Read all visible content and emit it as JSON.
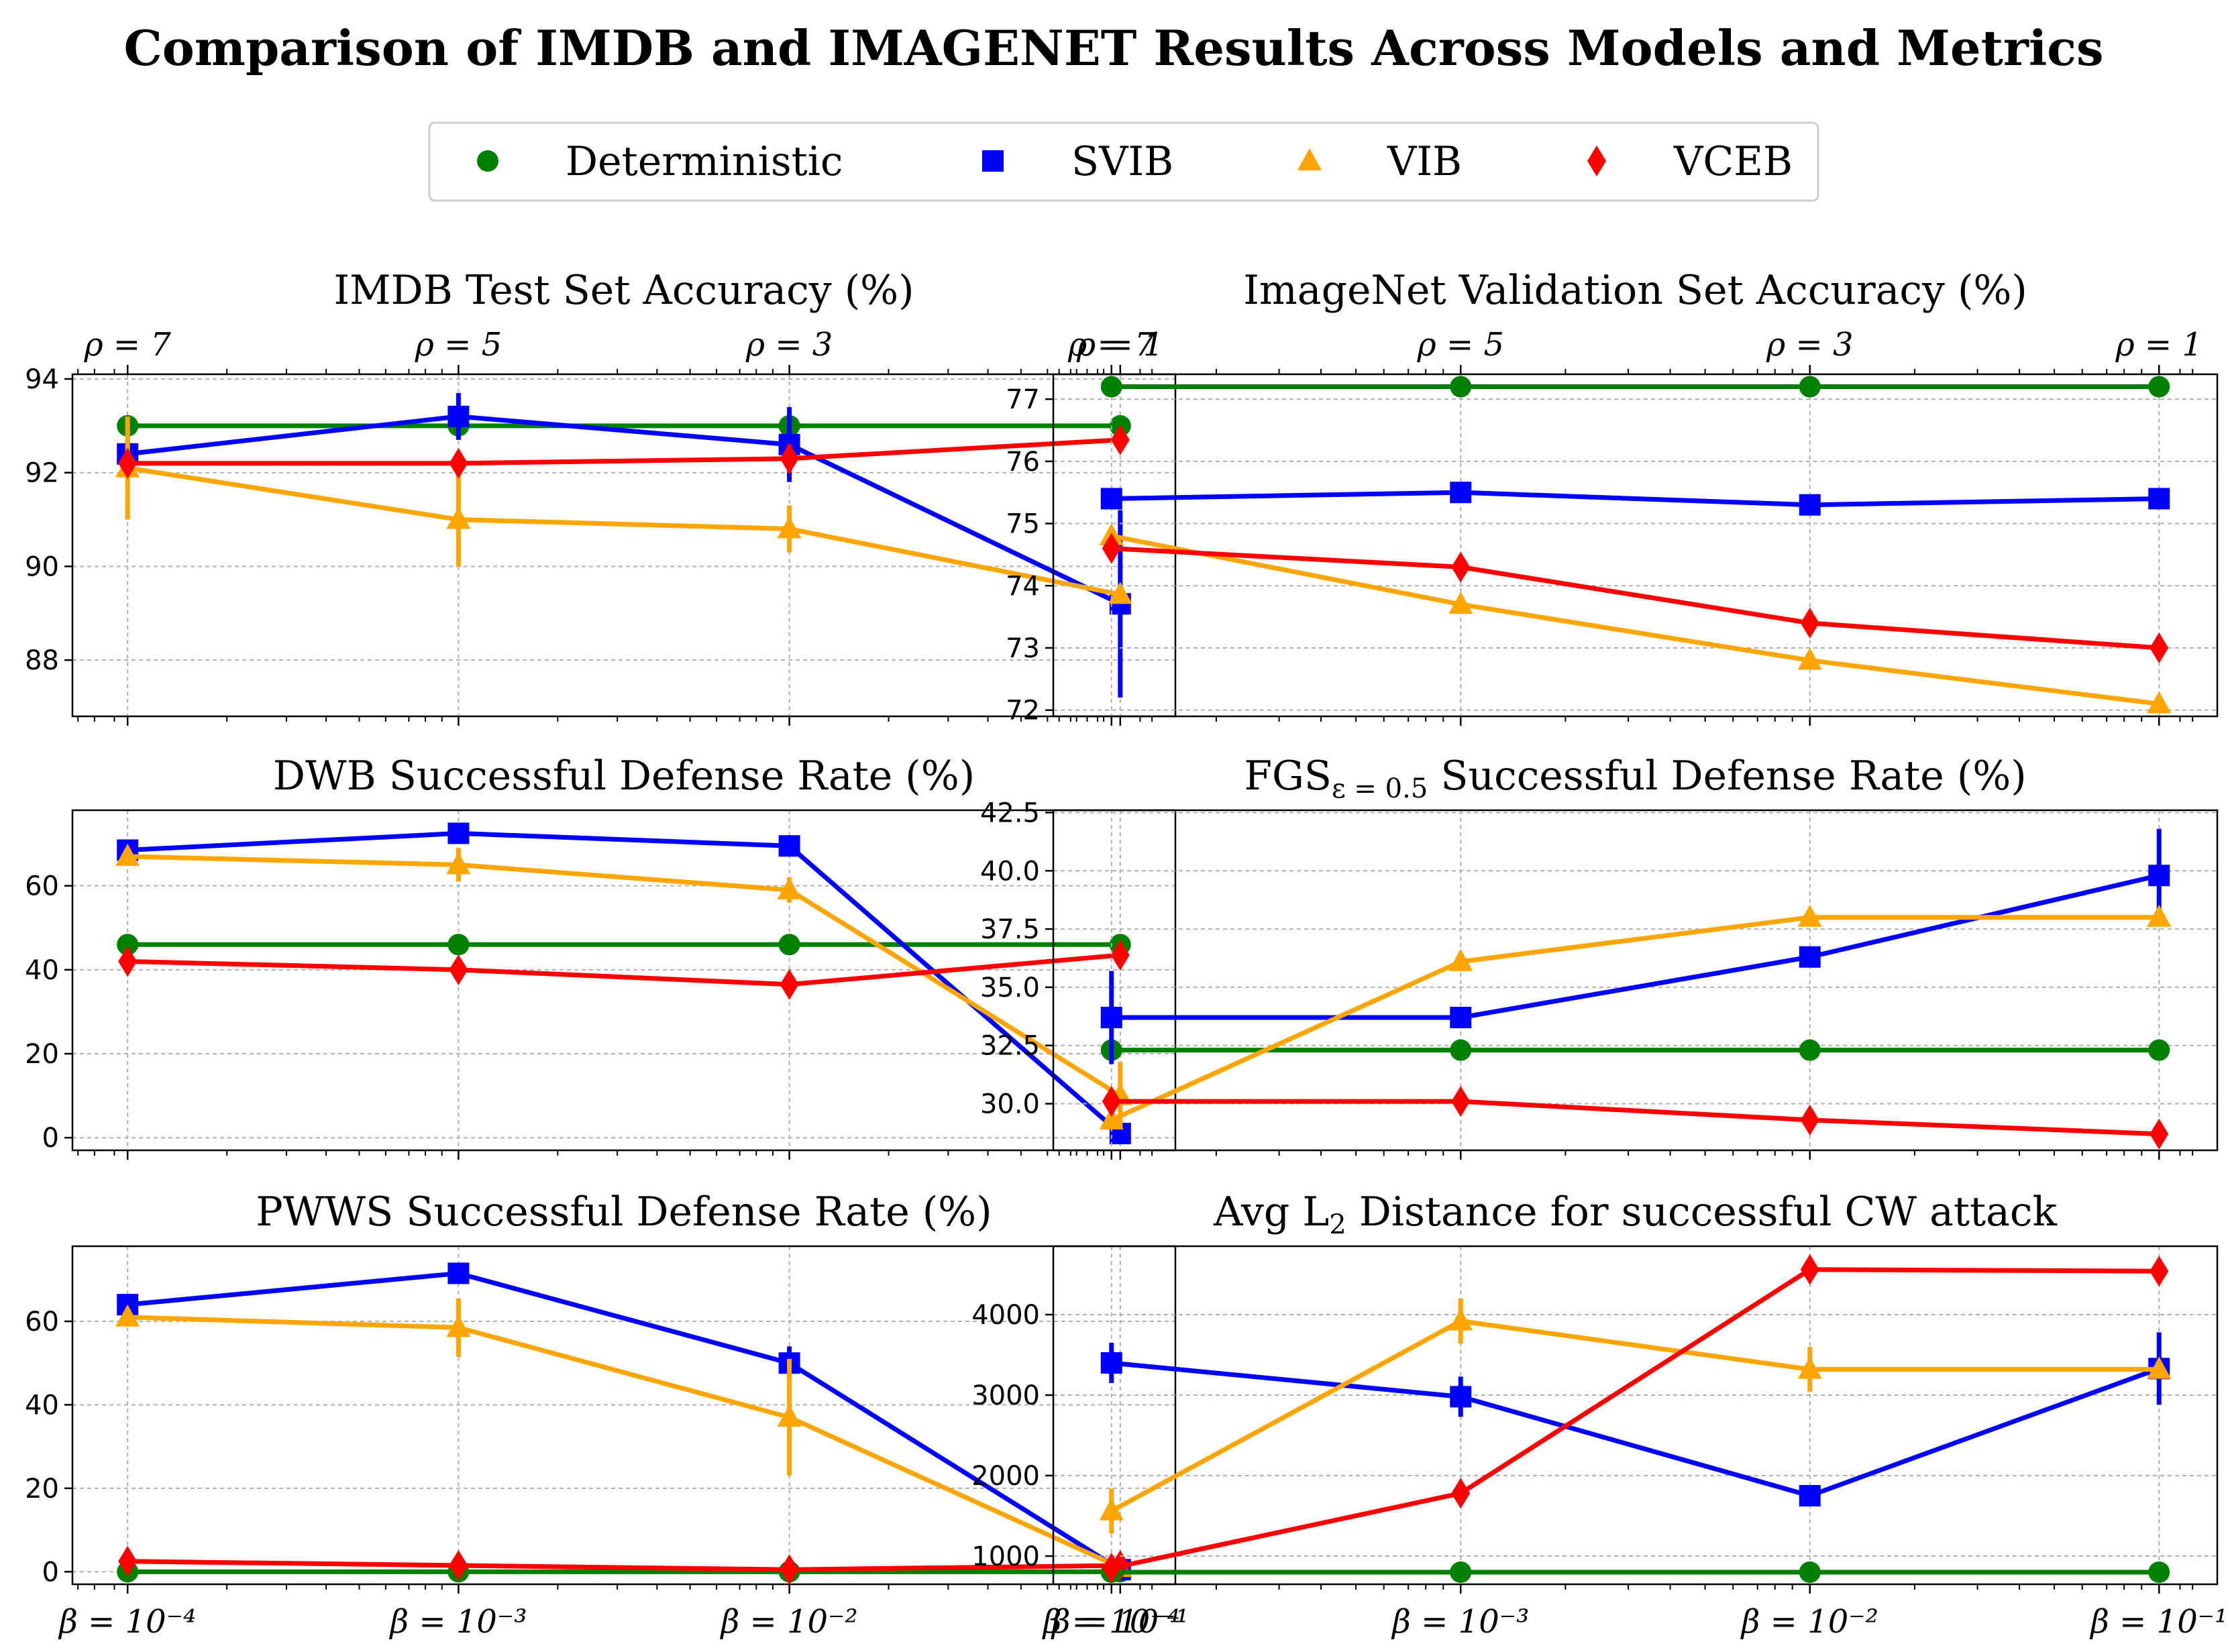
{
  "title": "Comparison of IMDB and IMAGENET Results Across Models and Metrics",
  "legend": [
    {
      "label": "Deterministic",
      "color": "#008000",
      "marker": "circle"
    },
    {
      "label": "SVIB",
      "color": "#0000ff",
      "marker": "square"
    },
    {
      "label": "VIB",
      "color": "#ffa500",
      "marker": "triangle"
    },
    {
      "label": "VCEB",
      "color": "#ff0000",
      "marker": "diamond"
    }
  ],
  "x_tick_labels": [
    "β = 10⁻⁴",
    "β = 10⁻³",
    "β = 10⁻²",
    "β = 10⁻¹"
  ],
  "top_tick_labels": [
    "ρ = 7",
    "ρ = 5",
    "ρ = 3",
    "ρ = 1"
  ],
  "chart_data": [
    {
      "type": "line",
      "title": "IMDB Test Set Accuracy (%)",
      "title_sub": "",
      "title_rest": "",
      "categories": [
        "β = 10⁻⁴",
        "β = 10⁻³",
        "β = 10⁻²",
        "β = 10⁻¹"
      ],
      "ylim": [
        86.8,
        94.1
      ],
      "yticks": [
        88,
        90,
        92,
        94
      ],
      "series": [
        {
          "name": "Deterministic",
          "values": [
            93.0,
            93.0,
            93.0,
            93.0
          ],
          "err": [
            0,
            0.3,
            0.2,
            0
          ]
        },
        {
          "name": "SVIB",
          "values": [
            92.4,
            93.2,
            92.6,
            89.2
          ],
          "err": [
            0.3,
            0.5,
            0.8,
            2.0
          ]
        },
        {
          "name": "VIB",
          "values": [
            92.1,
            91.0,
            90.8,
            89.4
          ],
          "err": [
            1.1,
            1.0,
            0.5,
            0.2
          ]
        },
        {
          "name": "VCEB",
          "values": [
            92.2,
            92.2,
            92.3,
            92.7
          ],
          "err": [
            0,
            0,
            0.3,
            0
          ]
        }
      ]
    },
    {
      "type": "line",
      "title": "ImageNet Validation Set Accuracy (%)",
      "title_sub": "",
      "title_rest": "",
      "categories": [
        "β = 10⁻⁴",
        "β = 10⁻³",
        "β = 10⁻²",
        "β = 10⁻¹"
      ],
      "ylim": [
        71.9,
        77.4
      ],
      "yticks": [
        72,
        73,
        74,
        75,
        76,
        77
      ],
      "series": [
        {
          "name": "Deterministic",
          "values": [
            77.2,
            77.2,
            77.2,
            77.2
          ],
          "err": [
            0,
            0,
            0,
            0
          ]
        },
        {
          "name": "SVIB",
          "values": [
            75.4,
            75.5,
            75.3,
            75.4
          ],
          "err": [
            0,
            0,
            0,
            0
          ]
        },
        {
          "name": "VIB",
          "values": [
            74.8,
            73.7,
            72.8,
            72.1
          ],
          "err": [
            0,
            0,
            0,
            0
          ]
        },
        {
          "name": "VCEB",
          "values": [
            74.6,
            74.3,
            73.4,
            73.0
          ],
          "err": [
            0,
            0,
            0,
            0
          ]
        }
      ]
    },
    {
      "type": "line",
      "title": "DWB Successful Defense Rate (%)",
      "title_sub": "",
      "title_rest": "",
      "categories": [
        "β = 10⁻⁴",
        "β = 10⁻³",
        "β = 10⁻²",
        "β = 10⁻¹"
      ],
      "ylim": [
        -3,
        78
      ],
      "yticks": [
        0,
        20,
        40,
        60
      ],
      "series": [
        {
          "name": "Deterministic",
          "values": [
            46,
            46,
            46,
            46
          ],
          "err": [
            0,
            0,
            0,
            0
          ]
        },
        {
          "name": "SVIB",
          "values": [
            68.5,
            72.5,
            69.5,
            1
          ],
          "err": [
            0,
            0,
            0,
            0
          ]
        },
        {
          "name": "VIB",
          "values": [
            67,
            65,
            59,
            10
          ],
          "err": [
            2,
            4,
            3,
            8
          ]
        },
        {
          "name": "VCEB",
          "values": [
            42,
            40,
            36.5,
            43.5
          ],
          "err": [
            0,
            0,
            0,
            0
          ]
        }
      ]
    },
    {
      "type": "line",
      "title": "FGS",
      "title_sub": "ε = 0.5",
      "title_rest": " Successful Defense Rate (%)",
      "categories": [
        "β = 10⁻⁴",
        "β = 10⁻³",
        "β = 10⁻²",
        "β = 10⁻¹"
      ],
      "ylim": [
        28.0,
        42.6
      ],
      "yticks": [
        30.0,
        32.5,
        35.0,
        37.5,
        40.0,
        42.5
      ],
      "series": [
        {
          "name": "Deterministic",
          "values": [
            32.3,
            32.3,
            32.3,
            32.3
          ],
          "err": [
            0,
            0,
            0,
            0
          ]
        },
        {
          "name": "SVIB",
          "values": [
            33.7,
            33.7,
            36.3,
            39.8
          ],
          "err": [
            2.0,
            0,
            0,
            2.0
          ]
        },
        {
          "name": "VIB",
          "values": [
            29.3,
            36.1,
            38.0,
            38.0
          ],
          "err": [
            0,
            0,
            0,
            0
          ]
        },
        {
          "name": "VCEB",
          "values": [
            30.1,
            30.1,
            29.3,
            28.7
          ],
          "err": [
            0,
            0,
            0,
            0
          ]
        }
      ]
    },
    {
      "type": "line",
      "title": "PWWS Successful Defense Rate (%)",
      "title_sub": "",
      "title_rest": "",
      "categories": [
        "β = 10⁻⁴",
        "β = 10⁻³",
        "β = 10⁻²",
        "β = 10⁻¹"
      ],
      "ylim": [
        -3,
        78
      ],
      "yticks": [
        0,
        20,
        40,
        60
      ],
      "series": [
        {
          "name": "Deterministic",
          "values": [
            0,
            0,
            0,
            0
          ],
          "err": [
            0,
            0,
            0,
            0
          ]
        },
        {
          "name": "SVIB",
          "values": [
            64,
            71.5,
            50,
            0.5
          ],
          "err": [
            0,
            0,
            4,
            0
          ]
        },
        {
          "name": "VIB",
          "values": [
            61,
            58.5,
            37,
            1
          ],
          "err": [
            0,
            7,
            14,
            0
          ]
        },
        {
          "name": "VCEB",
          "values": [
            2.5,
            1.5,
            0.5,
            1.5
          ],
          "err": [
            0,
            0,
            0,
            0
          ]
        }
      ]
    },
    {
      "type": "line",
      "title": "Avg L",
      "title_sub": "2",
      "title_rest": " Distance for successful CW attack",
      "categories": [
        "β = 10⁻⁴",
        "β = 10⁻³",
        "β = 10⁻²",
        "β = 10⁻¹"
      ],
      "ylim": [
        650,
        4850
      ],
      "yticks": [
        1000,
        2000,
        3000,
        4000
      ],
      "series": [
        {
          "name": "Deterministic",
          "values": [
            800,
            800,
            800,
            800
          ],
          "err": [
            0,
            0,
            0,
            0
          ]
        },
        {
          "name": "SVIB",
          "values": [
            3400,
            2980,
            1750,
            3330
          ],
          "err": [
            250,
            250,
            0,
            450
          ]
        },
        {
          "name": "VIB",
          "values": [
            1560,
            3920,
            3320,
            3320
          ],
          "err": [
            280,
            280,
            280,
            0
          ]
        },
        {
          "name": "VCEB",
          "values": [
            850,
            1780,
            4560,
            4540
          ],
          "err": [
            0,
            0,
            0,
            0
          ]
        }
      ]
    }
  ]
}
